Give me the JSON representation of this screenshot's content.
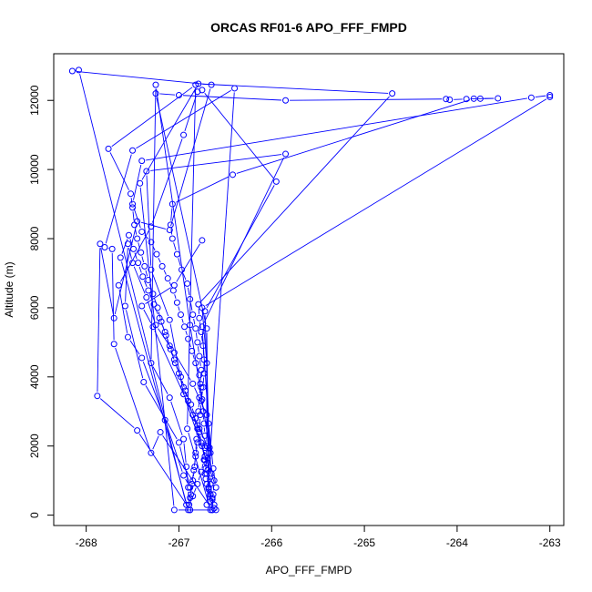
{
  "chart_data": {
    "type": "scatter",
    "title": "ORCAS RF01-6 APO_FFF_FMPD",
    "xlabel": "APO_FFF_FMPD",
    "ylabel": "Altitude (m)",
    "xlim": [
      -268.35,
      -262.85
    ],
    "ylim": [
      -300,
      13350
    ],
    "xticks": [
      -268,
      -267,
      -266,
      -265,
      -264,
      -263
    ],
    "yticks": [
      0,
      2000,
      4000,
      6000,
      8000,
      10000,
      12000
    ],
    "series_color": "#0000ff",
    "grid": false,
    "series": [
      {
        "name": "",
        "mode": "lines+markers",
        "points": [
          [
            -266.88,
            150
          ],
          [
            -266.87,
            600
          ],
          [
            -266.85,
            1000
          ],
          [
            -266.83,
            1400
          ],
          [
            -266.82,
            1800
          ],
          [
            -266.81,
            2200
          ],
          [
            -266.8,
            2600
          ],
          [
            -266.79,
            3000
          ],
          [
            -266.78,
            3400
          ],
          [
            -266.77,
            3800
          ],
          [
            -266.76,
            4200
          ],
          [
            -266.78,
            4600
          ],
          [
            -266.8,
            5000
          ],
          [
            -266.82,
            5400
          ],
          [
            -266.85,
            5800
          ],
          [
            -266.88,
            6250
          ],
          [
            -266.91,
            6700
          ],
          [
            -266.97,
            7100
          ],
          [
            -267.02,
            7550
          ],
          [
            -267.07,
            8000
          ],
          [
            -267.09,
            8400
          ],
          [
            -267.07,
            9000
          ],
          [
            -266.42,
            9850
          ],
          [
            -263.82,
            12050
          ],
          [
            -263.56,
            12060
          ],
          [
            -263.75,
            12050
          ],
          [
            -263.9,
            12040
          ],
          [
            -264.08,
            12020
          ],
          [
            -264.12,
            12040
          ],
          [
            -265.85,
            12000
          ],
          [
            -267.0,
            12150
          ],
          [
            -267.25,
            12200
          ],
          [
            -266.7,
            5400
          ],
          [
            -266.68,
            800
          ],
          [
            -266.62,
            200
          ],
          [
            -266.64,
            150
          ],
          [
            -266.66,
            400
          ],
          [
            -266.68,
            800
          ],
          [
            -266.7,
            1200
          ],
          [
            -266.72,
            1600
          ],
          [
            -266.75,
            2000
          ],
          [
            -266.78,
            2400
          ],
          [
            -266.82,
            2800
          ],
          [
            -266.87,
            3200
          ],
          [
            -266.93,
            3600
          ],
          [
            -266.98,
            4000
          ],
          [
            -267.04,
            4400
          ],
          [
            -267.09,
            4800
          ],
          [
            -267.14,
            5200
          ],
          [
            -267.19,
            5600
          ],
          [
            -267.23,
            6000
          ],
          [
            -267.28,
            6400
          ],
          [
            -267.33,
            6800
          ],
          [
            -267.37,
            7200
          ],
          [
            -267.41,
            7600
          ],
          [
            -267.45,
            8000
          ],
          [
            -267.48,
            8400
          ],
          [
            -267.5,
            8900
          ],
          [
            -267.52,
            9300
          ],
          [
            -267.76,
            10600
          ],
          [
            -266.82,
            12450
          ],
          [
            -266.91,
            2500
          ],
          [
            -266.66,
            150
          ],
          [
            -266.64,
            500
          ],
          [
            -266.66,
            900
          ],
          [
            -266.69,
            1300
          ],
          [
            -266.72,
            1700
          ],
          [
            -266.76,
            2100
          ],
          [
            -266.8,
            2500
          ],
          [
            -266.85,
            2900
          ],
          [
            -266.9,
            3300
          ],
          [
            -266.95,
            3700
          ],
          [
            -267.0,
            4100
          ],
          [
            -267.05,
            4500
          ],
          [
            -267.1,
            4900
          ],
          [
            -267.15,
            5300
          ],
          [
            -267.21,
            5700
          ],
          [
            -267.27,
            6100
          ],
          [
            -267.33,
            6500
          ],
          [
            -267.39,
            6900
          ],
          [
            -267.44,
            7300
          ],
          [
            -267.49,
            7700
          ],
          [
            -267.54,
            8100
          ],
          [
            -267.63,
            7450
          ],
          [
            -266.9,
            150
          ],
          [
            -266.88,
            500
          ],
          [
            -266.86,
            900
          ],
          [
            -266.84,
            1300
          ],
          [
            -266.82,
            1700
          ],
          [
            -266.8,
            2100
          ],
          [
            -266.78,
            2500
          ],
          [
            -266.77,
            2900
          ],
          [
            -266.76,
            3300
          ],
          [
            -266.74,
            3700
          ],
          [
            -266.73,
            4100
          ],
          [
            -266.73,
            4500
          ],
          [
            -266.74,
            4900
          ],
          [
            -266.76,
            5300
          ],
          [
            -266.78,
            5700
          ],
          [
            -266.79,
            6100
          ],
          [
            -264.7,
            12200
          ],
          [
            -266.79,
            12480
          ],
          [
            -267.42,
            9600
          ],
          [
            -267.05,
            150
          ],
          [
            -266.6,
            150
          ],
          [
            -266.62,
            300
          ],
          [
            -266.64,
            450
          ],
          [
            -266.66,
            600
          ],
          [
            -266.68,
            750
          ],
          [
            -266.7,
            900
          ],
          [
            -266.71,
            1050
          ],
          [
            -266.72,
            1200
          ],
          [
            -266.71,
            1350
          ],
          [
            -266.7,
            1500
          ],
          [
            -266.69,
            1650
          ],
          [
            -266.68,
            1800
          ],
          [
            -266.67,
            1950
          ],
          [
            -266.88,
            5500
          ],
          [
            -267.25,
            12450
          ],
          [
            -267.3,
            4400
          ],
          [
            -267.1,
            3400
          ],
          [
            -266.95,
            2200
          ],
          [
            -266.92,
            1400
          ],
          [
            -266.9,
            800
          ],
          [
            -266.89,
            300
          ],
          [
            -266.88,
            150
          ],
          [
            -267.45,
            2450
          ],
          [
            -267.88,
            3450
          ],
          [
            -267.85,
            7850
          ],
          [
            -267.7,
            5700
          ],
          [
            -267.45,
            8500
          ],
          [
            -267.1,
            8250
          ],
          [
            -266.65,
            12450
          ],
          [
            -268.15,
            12850
          ],
          [
            -268.08,
            12880
          ],
          [
            -266.92,
            300
          ],
          [
            -266.85,
            550
          ],
          [
            -266.8,
            900
          ],
          [
            -266.76,
            1250
          ],
          [
            -266.73,
            1600
          ],
          [
            -266.72,
            1950
          ],
          [
            -266.72,
            2300
          ],
          [
            -266.73,
            2650
          ],
          [
            -266.74,
            3000
          ],
          [
            -266.75,
            3350
          ],
          [
            -266.76,
            3700
          ],
          [
            -266.78,
            4050
          ],
          [
            -266.82,
            4400
          ],
          [
            -266.86,
            4750
          ],
          [
            -266.9,
            5100
          ],
          [
            -266.94,
            5450
          ],
          [
            -266.98,
            5800
          ],
          [
            -267.02,
            6150
          ],
          [
            -267.06,
            6500
          ],
          [
            -267.12,
            6850
          ],
          [
            -267.18,
            7200
          ],
          [
            -267.24,
            7550
          ],
          [
            -267.3,
            7900
          ],
          [
            -267.4,
            8200
          ],
          [
            -267.5,
            9000
          ],
          [
            -267.4,
            10250
          ],
          [
            -263.2,
            12080
          ],
          [
            -263.0,
            12150
          ],
          [
            -263.0,
            12100
          ],
          [
            -266.75,
            6000
          ],
          [
            -266.7,
            4400
          ],
          [
            -266.7,
            2000
          ],
          [
            -266.62,
            1000
          ],
          [
            -266.63,
            600
          ],
          [
            -266.64,
            150
          ],
          [
            -267.2,
            2400
          ],
          [
            -267.3,
            1800
          ],
          [
            -267.7,
            4950
          ],
          [
            -267.72,
            7700
          ],
          [
            -267.8,
            7750
          ],
          [
            -267.5,
            10550
          ],
          [
            -266.4,
            12350
          ],
          [
            -266.7,
            300
          ],
          [
            -266.65,
            1200
          ],
          [
            -266.7,
            2900
          ],
          [
            -266.85,
            3800
          ],
          [
            -267.05,
            4700
          ],
          [
            -267.25,
            5500
          ],
          [
            -267.35,
            6300
          ],
          [
            -267.5,
            7300
          ],
          [
            -267.55,
            7850
          ],
          [
            -267.58,
            6050
          ],
          [
            -267.38,
            3850
          ],
          [
            -267.0,
            2100
          ],
          [
            -266.88,
            800
          ],
          [
            -266.95,
            1150
          ],
          [
            -267.15,
            2750
          ],
          [
            -267.4,
            4550
          ],
          [
            -267.55,
            5150
          ],
          [
            -267.65,
            6650
          ],
          [
            -267.3,
            8350
          ],
          [
            -266.95,
            11000
          ],
          [
            -266.8,
            12250
          ],
          [
            -266.75,
            12300
          ],
          [
            -265.95,
            9650
          ],
          [
            -266.72,
            5900
          ],
          [
            -266.68,
            2650
          ],
          [
            -266.63,
            1350
          ],
          [
            -266.6,
            800
          ],
          [
            -266.95,
            3500
          ],
          [
            -267.1,
            5650
          ],
          [
            -267.3,
            7100
          ],
          [
            -267.35,
            9950
          ],
          [
            -265.85,
            10450
          ],
          [
            -266.75,
            5450
          ],
          [
            -266.66,
            1800
          ],
          [
            -267.28,
            5450
          ],
          [
            -267.4,
            6050
          ],
          [
            -267.05,
            6650
          ],
          [
            -266.75,
            7950
          ]
        ]
      }
    ]
  }
}
